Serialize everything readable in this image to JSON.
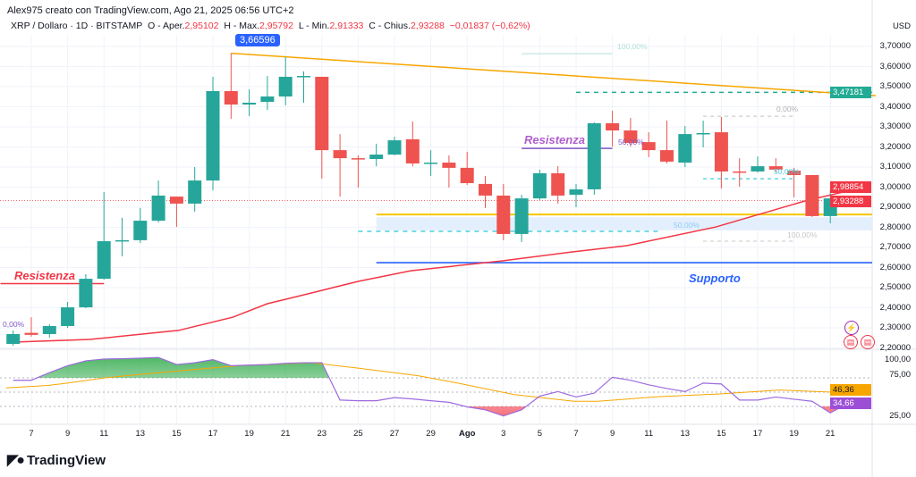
{
  "header": {
    "credit": "Alex975 creato con TradingView.com, Ago 21, 2025 06:56 UTC+2",
    "symbol": "XRP / Dollaro · 1D · BITSTAMP",
    "open_label": "O - Aper.",
    "open": "2,95102",
    "high_label": "H - Max.",
    "high": "2,95792",
    "low_label": "L - Min.",
    "low": "2,91333",
    "close_label": "C - Chius.",
    "close": "2,93288",
    "change": "−0,01837 (−0,62%)"
  },
  "colors": {
    "up": "#26a69a",
    "down": "#ef5350",
    "trend": "#f7a600",
    "ma": "#f23645",
    "support": "#2962ff",
    "rsi": "#9c6ade",
    "rsi_ma": "#f7a600"
  },
  "price_axis": {
    "currency": "USD",
    "labels": [
      "3,70000",
      "3,60000",
      "3,50000",
      "3,40000",
      "3,30000",
      "3,20000",
      "3,10000",
      "3,00000",
      "2,90000",
      "2,80000",
      "2,70000",
      "2,60000",
      "2,50000",
      "2,40000",
      "2,30000",
      "2,20000"
    ],
    "tags": {
      "green_level": "3,47181",
      "ma_value": "2,98854",
      "last_price": "2,93288"
    }
  },
  "rsi_axis": {
    "labels": [
      "100,00",
      "75,00",
      "25,00"
    ],
    "rsi_ma_value": "46,36",
    "rsi_value": "34,66"
  },
  "x_axis": {
    "labels": [
      "7",
      "9",
      "11",
      "13",
      "15",
      "17",
      "19",
      "21",
      "23",
      "25",
      "27",
      "29",
      "Ago",
      "3",
      "5",
      "7",
      "9",
      "11",
      "13",
      "15",
      "17",
      "19",
      "21"
    ]
  },
  "callout": "3,66596",
  "annotations": {
    "resistance_left": "Resistenza",
    "resistance_mid": "Resistenza",
    "support": "Supporto",
    "fib_0_left": "0,00%",
    "fib_100_top": "100,00%",
    "fib_50_purple": "50,00%",
    "fib_50_blue": "50,00%",
    "fib_0_right": "0,00%",
    "fib_50_right": "50,00%",
    "fib_100_right": "100,00%"
  },
  "logo": "TradingView",
  "chart_data": {
    "type": "candlestick",
    "first_date": "Jul 6",
    "candles": [
      [
        2.22,
        2.287,
        2.211,
        2.269
      ],
      [
        2.275,
        2.353,
        2.256,
        2.265
      ],
      [
        2.269,
        2.318,
        2.251,
        2.309
      ],
      [
        2.309,
        2.429,
        2.3,
        2.402
      ],
      [
        2.402,
        2.567,
        2.398,
        2.544
      ],
      [
        2.544,
        2.976,
        2.54,
        2.731
      ],
      [
        2.731,
        2.847,
        2.656,
        2.736
      ],
      [
        2.736,
        2.896,
        2.722,
        2.833
      ],
      [
        2.833,
        3.033,
        2.824,
        2.958
      ],
      [
        2.953,
        2.953,
        2.802,
        2.918
      ],
      [
        2.918,
        3.1,
        2.878,
        3.033
      ],
      [
        3.033,
        3.549,
        2.984,
        3.478
      ],
      [
        3.478,
        3.666,
        3.34,
        3.411
      ],
      [
        3.411,
        3.487,
        3.353,
        3.42
      ],
      [
        3.424,
        3.553,
        3.384,
        3.451
      ],
      [
        3.451,
        3.647,
        3.407,
        3.549
      ],
      [
        3.549,
        3.576,
        3.42,
        3.553
      ],
      [
        3.549,
        3.549,
        3.042,
        3.184
      ],
      [
        3.184,
        3.264,
        2.953,
        3.144
      ],
      [
        3.144,
        3.158,
        2.998,
        3.14
      ],
      [
        3.14,
        3.216,
        3.104,
        3.162
      ],
      [
        3.162,
        3.251,
        3.158,
        3.233
      ],
      [
        3.238,
        3.327,
        3.104,
        3.118
      ],
      [
        3.118,
        3.184,
        3.056,
        3.122
      ],
      [
        3.122,
        3.158,
        2.998,
        3.096
      ],
      [
        3.096,
        3.176,
        3.011,
        3.02
      ],
      [
        3.016,
        3.056,
        2.896,
        2.958
      ],
      [
        2.958,
        3.016,
        2.736,
        2.767
      ],
      [
        2.767,
        2.962,
        2.727,
        2.944
      ],
      [
        2.944,
        3.087,
        2.936,
        3.069
      ],
      [
        3.069,
        3.104,
        2.918,
        2.958
      ],
      [
        2.962,
        3.016,
        2.9,
        2.989
      ],
      [
        2.989,
        3.322,
        2.962,
        3.318
      ],
      [
        3.318,
        3.38,
        3.202,
        3.282
      ],
      [
        3.282,
        3.344,
        3.202,
        3.22
      ],
      [
        3.224,
        3.273,
        3.149,
        3.184
      ],
      [
        3.184,
        3.331,
        3.118,
        3.127
      ],
      [
        3.122,
        3.304,
        3.1,
        3.264
      ],
      [
        3.264,
        3.331,
        3.198,
        3.269
      ],
      [
        3.273,
        3.349,
        2.993,
        3.078
      ],
      [
        3.078,
        3.144,
        3.002,
        3.074
      ],
      [
        3.078,
        3.153,
        3.073,
        3.104
      ],
      [
        3.104,
        3.144,
        3.073,
        3.087
      ],
      [
        3.082,
        3.096,
        2.949,
        3.06
      ],
      [
        3.06,
        3.06,
        2.851,
        2.856
      ],
      [
        2.856,
        2.984,
        2.82,
        2.944
      ],
      [
        2.951,
        2.958,
        2.913,
        2.933
      ]
    ],
    "moving_average": [
      [
        0,
        2.229
      ],
      [
        4.2,
        2.242
      ],
      [
        9.1,
        2.287
      ],
      [
        12.1,
        2.353
      ],
      [
        14,
        2.42
      ],
      [
        16,
        2.464
      ],
      [
        19,
        2.531
      ],
      [
        21.9,
        2.584
      ],
      [
        26.9,
        2.633
      ],
      [
        30.8,
        2.678
      ],
      [
        33.8,
        2.709
      ],
      [
        38.7,
        2.802
      ],
      [
        43.6,
        2.931
      ],
      [
        46.1,
        2.984
      ]
    ],
    "trendline": {
      "from": [
        12,
        3.666
      ],
      "to": [
        47.5,
        3.455
      ]
    },
    "levels": {
      "yellow": 2.864,
      "zone": [
        2.785,
        2.85
      ],
      "cyan_dashed": 2.78,
      "support": 2.624,
      "resistance_left": 2.52,
      "resistance_mid": 3.193,
      "green_dashed": 3.47181,
      "fib_top": 3.664,
      "fib_right": [
        3.353,
        3.042,
        2.731
      ]
    },
    "price_range": [
      2.2,
      3.7
    ],
    "rsi": [
      66.6,
      66.6,
      77.2,
      87.0,
      93.8,
      96.3,
      96.8,
      97.6,
      98.5,
      88.7,
      91.2,
      95.5,
      87.0,
      87.8,
      88.7,
      90.3,
      91.2,
      91.2,
      38.9,
      38.0,
      38.0,
      42.3,
      40.5,
      38.0,
      35.8,
      29.4,
      25.2,
      16.7,
      25.2,
      44.4,
      50.8,
      43.2,
      48.7,
      70.8,
      66.6,
      60.2,
      55.1,
      50.8,
      62.7,
      61.4,
      38.9,
      38.9,
      43.2,
      40.1,
      37.2,
      21.0,
      34.66
    ],
    "rsi_ma": [
      [
        -0.4,
        56.0
      ],
      [
        1.9,
        59.4
      ],
      [
        2.9,
        62.3
      ],
      [
        5,
        69.9
      ],
      [
        8.2,
        77.7
      ],
      [
        12.4,
        87.0
      ],
      [
        16.4,
        91.2
      ],
      [
        19,
        83.6
      ],
      [
        22.3,
        73.0
      ],
      [
        24.3,
        63.6
      ],
      [
        27.6,
        46.6
      ],
      [
        30.9,
        37.2
      ],
      [
        32.2,
        37.2
      ],
      [
        35.5,
        43.6
      ],
      [
        38.8,
        47.4
      ],
      [
        42.2,
        52.9
      ],
      [
        45.3,
        49.9
      ],
      [
        46,
        46.36
      ]
    ],
    "rsi_levels": [
      70,
      50,
      30
    ]
  }
}
